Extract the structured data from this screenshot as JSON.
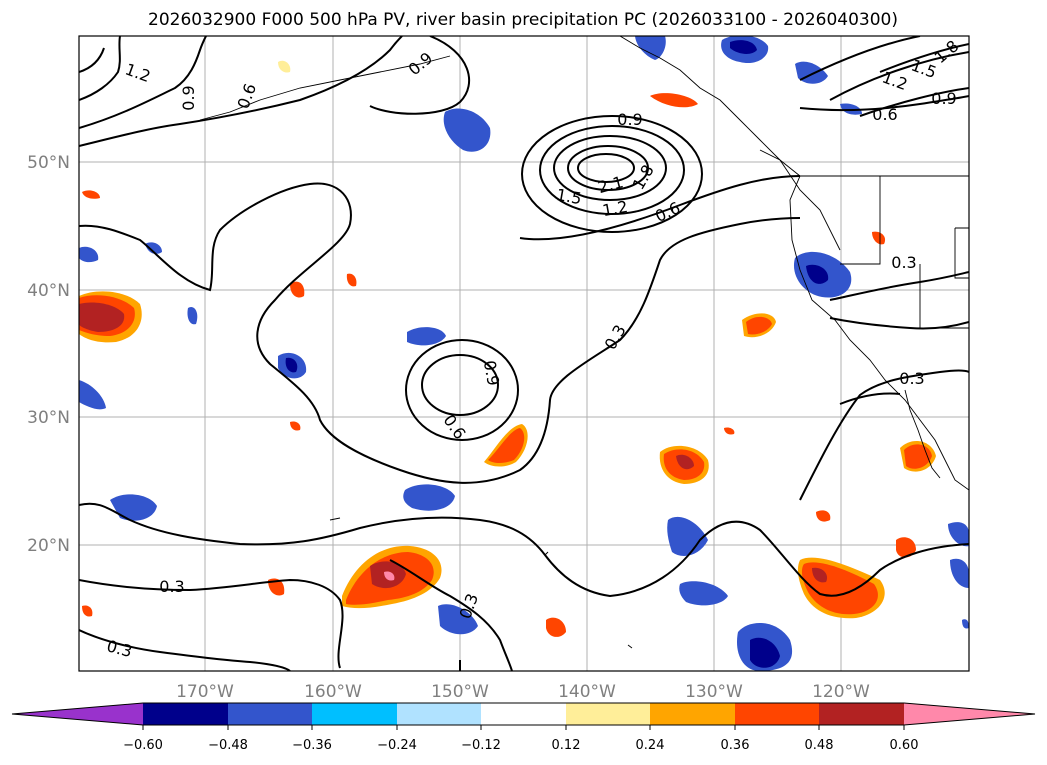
{
  "title": "2026032900 F000 500 hPa PV, river basin precipitation PC (2026033100 - 2026040300)",
  "map": {
    "longitude_labels": [
      "170°W",
      "160°W",
      "150°W",
      "140°W",
      "130°W",
      "120°W"
    ],
    "latitude_labels": [
      "50°N",
      "40°N",
      "30°N",
      "20°N"
    ],
    "pv_contour_labels": [
      "1.2",
      "0.9",
      "0.6",
      "0.9",
      "0.9",
      "1.5",
      "2.1",
      "1.8",
      "1.2",
      "0.6",
      "1.8",
      "1.5",
      "1.2",
      "0.9",
      "0.6",
      "0.3",
      "0.3",
      "0.9",
      "0.6",
      "0.3",
      "0.3",
      "0.3",
      "0.3"
    ]
  },
  "colorbar": {
    "colors": [
      "#9932cc",
      "#00008b",
      "#3355cc",
      "#00bfff",
      "#b0e2ff",
      "#ffffff",
      "#ffee99",
      "#ffa500",
      "#ff4500",
      "#b22222",
      "#ff88aa"
    ],
    "tick_labels": [
      "−0.60",
      "−0.48",
      "−0.36",
      "−0.24",
      "−0.12",
      "0.12",
      "0.24",
      "0.36",
      "0.48",
      "0.60"
    ]
  }
}
